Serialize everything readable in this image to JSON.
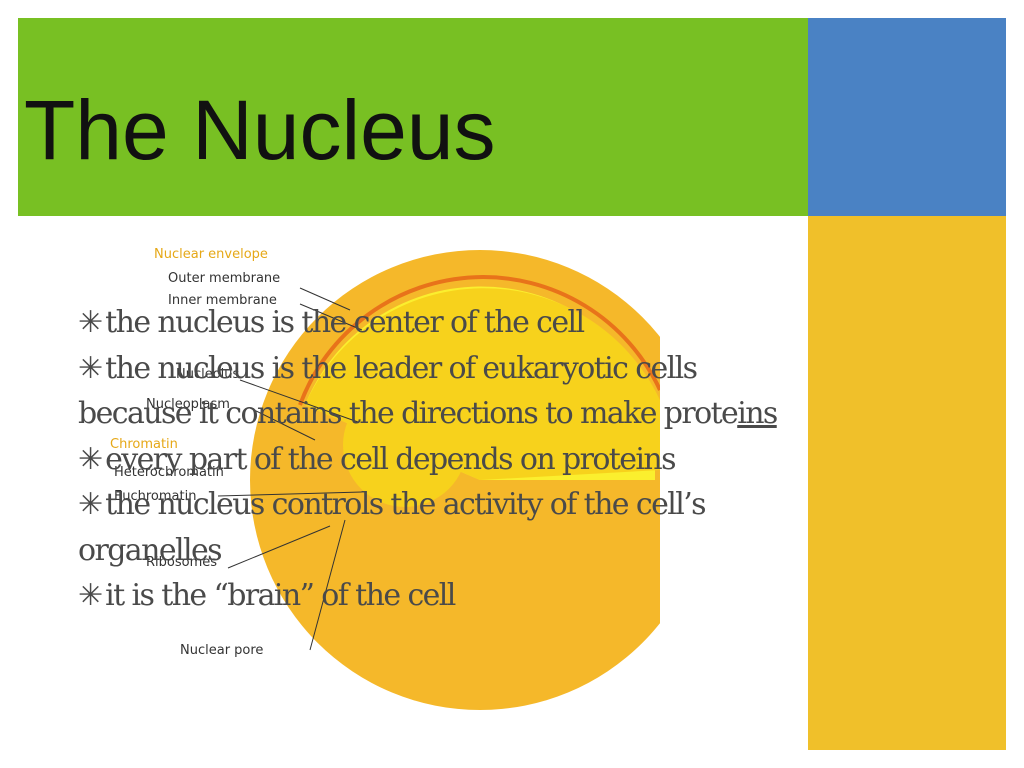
{
  "slide": {
    "title": "The Nucleus",
    "colors": {
      "title_bar": "#78c023",
      "accent_blue": "#4a82c4",
      "accent_yellow": "#f0c02a",
      "bullet_text": "#4a4a4a"
    }
  },
  "bullet_marker": "✳",
  "bullets": [
    {
      "text": "the nucleus is the center of the cell"
    },
    {
      "text": "the nucleus is the leader of eukaryotic cells because it contains the directions to make prote",
      "underlined": "ins "
    },
    {
      "text": "every part of the cell depends on proteins"
    },
    {
      "text": "the nucleus controls the activity of the cell’s organelles"
    },
    {
      "text": "it is the “brain” of the cell"
    }
  ],
  "diagram": {
    "labels": {
      "nuclear_envelope": "Nuclear envelope",
      "outer_membrane": "Outer membrane",
      "inner_membrane": "Inner membrane",
      "nucleolus": "Nucleolus",
      "nucleoplasm": "Nucleoplasm",
      "chromatin": "Chromatin",
      "heterochromatin": "Heterochromatin",
      "euchromatin": "Euchromatin",
      "ribosomes": "Ribosomes",
      "nuclear_pore": "Nuclear pore"
    },
    "colors": {
      "outer": "#f5b82a",
      "inner": "#f7d21c",
      "core": "#fbef2e",
      "membrane": "#e8731a"
    }
  }
}
